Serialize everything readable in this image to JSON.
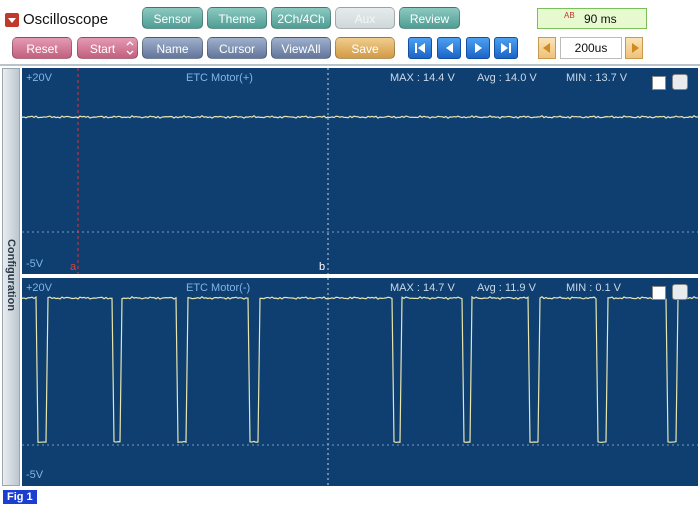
{
  "toolbar": {
    "title": "Oscilloscope",
    "buttons": [
      "Sensor",
      "Theme",
      "2Ch/4Ch",
      "Aux",
      "Review"
    ],
    "time_icon": "AB",
    "time_display": "90 ms"
  },
  "controls": {
    "buttons": [
      "Reset",
      "Start",
      "Name",
      "Cursor",
      "ViewAll",
      "Save"
    ],
    "timebase": "200us"
  },
  "sidebar": "Configuration",
  "channels": [
    {
      "top_label": "+20V",
      "name": "ETC Motor(+)",
      "max": "MAX : 14.4 V",
      "avg": "Avg : 14.0 V",
      "min": "MIN : 13.7 V",
      "bottom_label": "-5V",
      "cursors": [
        "a",
        "b"
      ]
    },
    {
      "top_label": "+20V",
      "name": "ETC Motor(-)",
      "max": "MAX : 14.7 V",
      "avg": "Avg : 11.9 V",
      "min": "MIN : 0.1 V",
      "bottom_label": "-5V"
    }
  ],
  "figure_label": "Fig 1"
}
